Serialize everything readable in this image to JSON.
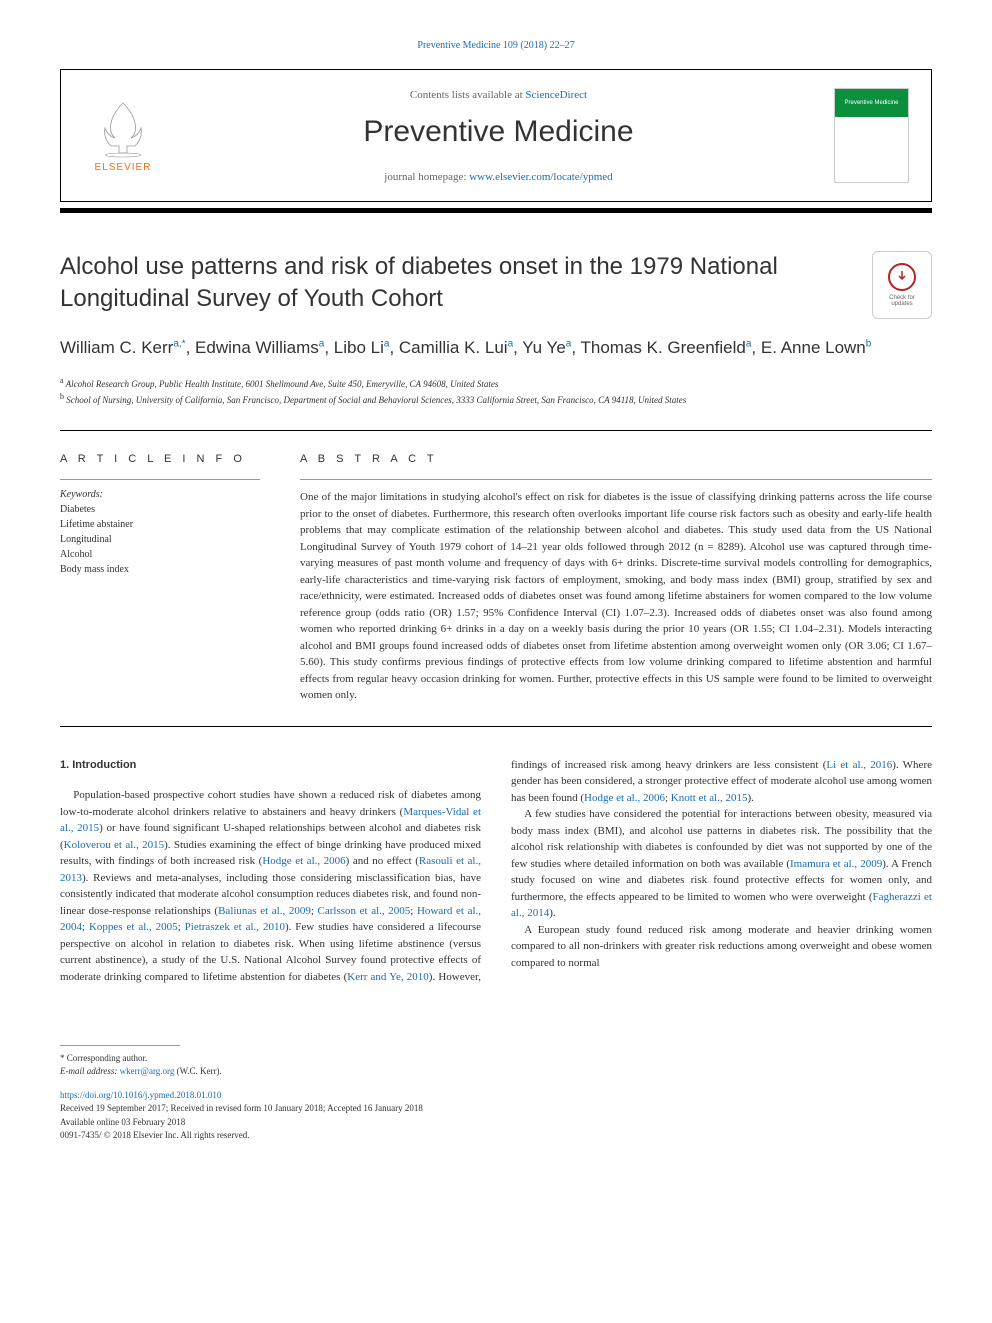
{
  "journal_top_link": "Preventive Medicine 109 (2018) 22–27",
  "header": {
    "contents_text": "Contents lists available at ",
    "contents_link": "ScienceDirect",
    "journal_name": "Preventive Medicine",
    "homepage_text": "journal homepage: ",
    "homepage_link": "www.elsevier.com/locate/ypmed",
    "elsevier_label": "ELSEVIER",
    "cover_label": "Preventive Medicine"
  },
  "check_updates": {
    "line1": "Check for",
    "line2": "updates"
  },
  "article": {
    "title": "Alcohol use patterns and risk of diabetes onset in the 1979 National Longitudinal Survey of Youth Cohort",
    "authors_html": "William C. Kerr<sup>a,*</sup>, Edwina Williams<sup>a</sup>, Libo Li<sup>a</sup>, Camillia K. Lui<sup>a</sup>, Yu Ye<sup>a</sup>, Thomas K. Greenfield<sup>a</sup>, E. Anne Lown<sup>b</sup>",
    "affiliations": [
      "a Alcohol Research Group, Public Health Institute, 6001 Shellmound Ave, Suite 450, Emeryville, CA 94608, United States",
      "b School of Nursing, University of California, San Francisco, Department of Social and Behavioral Sciences, 3333 California Street, San Francisco, CA 94118, United States"
    ]
  },
  "info": {
    "heading": "A R T I C L E  I N F O",
    "keywords_label": "Keywords:",
    "keywords": [
      "Diabetes",
      "Lifetime abstainer",
      "Longitudinal",
      "Alcohol",
      "Body mass index"
    ]
  },
  "abstract": {
    "heading": "A B S T R A C T",
    "text": "One of the major limitations in studying alcohol's effect on risk for diabetes is the issue of classifying drinking patterns across the life course prior to the onset of diabetes. Furthermore, this research often overlooks important life course risk factors such as obesity and early-life health problems that may complicate estimation of the relationship between alcohol and diabetes. This study used data from the US National Longitudinal Survey of Youth 1979 cohort of 14–21 year olds followed through 2012 (n = 8289). Alcohol use was captured through time-varying measures of past month volume and frequency of days with 6+ drinks. Discrete-time survival models controlling for demographics, early-life characteristics and time-varying risk factors of employment, smoking, and body mass index (BMI) group, stratified by sex and race/ethnicity, were estimated. Increased odds of diabetes onset was found among lifetime abstainers for women compared to the low volume reference group (odds ratio (OR) 1.57; 95% Confidence Interval (CI) 1.07–2.3). Increased odds of diabetes onset was also found among women who reported drinking 6+ drinks in a day on a weekly basis during the prior 10 years (OR 1.55; CI 1.04–2.31). Models interacting alcohol and BMI groups found increased odds of diabetes onset from lifetime abstention among overweight women only (OR 3.06; CI 1.67–5.60). This study confirms previous findings of protective effects from low volume drinking compared to lifetime abstention and harmful effects from regular heavy occasion drinking for women. Further, protective effects in this US sample were found to be limited to overweight women only."
  },
  "intro": {
    "heading": "1. Introduction",
    "p1_pre": "Population-based prospective cohort studies have shown a reduced risk of diabetes among low-to-moderate alcohol drinkers relative to abstainers and heavy drinkers (",
    "p1_ref1": "Marques-Vidal et al., 2015",
    "p1_mid1": ") or have found significant U-shaped relationships between alcohol and diabetes risk (",
    "p1_ref2": "Koloverou et al., 2015",
    "p1_mid2": "). Studies examining the effect of binge drinking have produced mixed results, with findings of both increased risk (",
    "p1_ref3": "Hodge et al., 2006",
    "p1_mid3": ") and no effect (",
    "p1_ref4": "Rasouli et al., 2013",
    "p1_mid4": "). Reviews and meta-analyses, including those considering misclassification bias, have consistently indicated that moderate alcohol consumption reduces diabetes risk, and found non-linear dose-response relationships (",
    "p1_ref5": "Baliunas et al., 2009",
    "p1_sep1": "; ",
    "p1_ref6": "Carlsson et al., 2005",
    "p1_sep2": "; ",
    "p1_ref7": "Howard et al., 2004",
    "p1_sep3": "; ",
    "p1_ref8": "Koppes et al., 2005",
    "p1_sep4": "; ",
    "p1_ref9": "Pietraszek et al., 2010",
    "p1_mid5": "). Few studies have considered a lifecourse perspective on alcohol in relation to diabetes risk. When using lifetime abstinence (versus current abstinence), a study of the U.S. National Alcohol Survey found protective effects of moderate drinking compared to lifetime abstention for diabetes (",
    "p1_ref10": "Kerr and Ye, 2010",
    "p1_mid6": "). However, findings of increased risk among heavy drinkers are less consistent (",
    "p1_ref11": "Li et al., 2016",
    "p1_mid7": "). Where gender has been considered, a stronger protective effect of moderate alcohol use among women has been found (",
    "p1_ref12": "Hodge et al., 2006",
    "p1_sep5": "; ",
    "p1_ref13": "Knott et al., 2015",
    "p1_end": ").",
    "p2_pre": "A few studies have considered the potential for interactions between obesity, measured via body mass index (BMI), and alcohol use patterns in diabetes risk. The possibility that the alcohol risk relationship with diabetes is confounded by diet was not supported by one of the few studies where detailed information on both was available (",
    "p2_ref1": "Imamura et al., 2009",
    "p2_mid1": "). A French study focused on wine and diabetes risk found protective effects for women only, and furthermore, the effects appeared to be limited to women who were overweight (",
    "p2_ref2": "Fagherazzi et al., 2014",
    "p2_end": ").",
    "p3": "A European study found reduced risk among moderate and heavier drinking women compared to all non-drinkers with greater risk reductions among overweight and obese women compared to normal"
  },
  "footer": {
    "corr_label": "* Corresponding author.",
    "email_label": "E-mail address: ",
    "email": "wkerr@arg.org",
    "email_suffix": " (W.C. Kerr).",
    "doi": "https://doi.org/10.1016/j.ypmed.2018.01.010",
    "received": "Received 19 September 2017; Received in revised form 10 January 2018; Accepted 16 January 2018",
    "available": "Available online 03 February 2018",
    "copyright": "0091-7435/ © 2018 Elsevier Inc. All rights reserved."
  },
  "colors": {
    "link": "#1a6cb3",
    "elsevier_orange": "#e9711c",
    "cover_green": "#0a8f3c",
    "text": "#333333"
  }
}
